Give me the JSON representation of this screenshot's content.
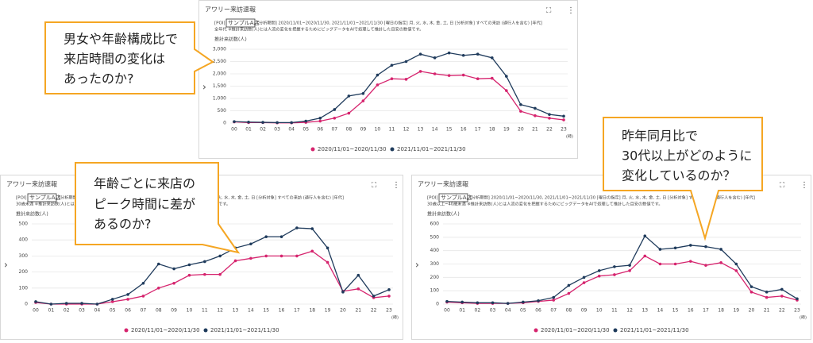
{
  "chart_data": [
    {
      "type": "line",
      "title": "アワリー来訪速報",
      "poi_label": "[POI]",
      "store": "サンプルA店",
      "description": [
        "[分析期間] 2020/11/01~2020/11/30, 2021/11/01~2021/11/30 [曜日の指定] 月, 火, 水, 木, 金, 土, 日 [分析対象] すべての来訪 (通行人を含む) [年代]",
        "全年代 ※推計来訪数(人)とは人流の変化を把握するためにビッグデータをAIで処理して推計した目安の数値です。"
      ],
      "y_label": "推計来訪数(人)",
      "x_unit": "(時)",
      "categories": [
        "00",
        "01",
        "02",
        "03",
        "04",
        "05",
        "06",
        "07",
        "08",
        "09",
        "10",
        "11",
        "12",
        "13",
        "14",
        "15",
        "16",
        "17",
        "18",
        "19",
        "20",
        "21",
        "22",
        "23"
      ],
      "ylim": [
        0,
        3000
      ],
      "yticks": [
        0,
        500,
        {
          "value": 1000,
          "label": "1,000"
        },
        {
          "value": 1500,
          "label": "1,500"
        },
        {
          "value": 2000,
          "label": "2,000"
        },
        {
          "value": 2500,
          "label": "2,500"
        },
        {
          "value": 3000,
          "label": "3,000"
        }
      ],
      "series": [
        {
          "name": "2020/11/01~2020/11/30",
          "color": "#d6246e",
          "values": [
            50,
            20,
            20,
            10,
            10,
            30,
            80,
            200,
            400,
            900,
            1550,
            1800,
            1780,
            2100,
            2000,
            1930,
            1950,
            1800,
            1820,
            1320,
            480,
            300,
            200,
            130
          ]
        },
        {
          "name": "2021/11/01~2021/11/30",
          "color": "#1f3b5c",
          "values": [
            60,
            40,
            30,
            20,
            20,
            80,
            200,
            550,
            1100,
            1200,
            1950,
            2350,
            2500,
            2800,
            2650,
            2850,
            2750,
            2800,
            2650,
            1900,
            750,
            600,
            350,
            280
          ]
        }
      ]
    },
    {
      "type": "line",
      "title": "アワリー来訪速報",
      "poi_label": "[POI]",
      "store": "サンプルA店",
      "description": [
        "[分析期間] 2020/11/01~2020/11/30, 2021/11/01~2021/11/30 [曜日の指定] 月, 火, 水, 木, 金, 土, 日 [分析対象] すべての来訪 (通行人を含む) [年代]",
        "30歳未満 ※推計来訪数(人)とは人流の変化を把握するためにビッグデータをAIで処理して推計した目安の数値です。"
      ],
      "y_label": "推計来訪数(人)",
      "x_unit": "(時)",
      "categories": [
        "00",
        "01",
        "02",
        "03",
        "04",
        "05",
        "06",
        "07",
        "08",
        "09",
        "10",
        "11",
        "12",
        "13",
        "14",
        "15",
        "16",
        "17",
        "18",
        "19",
        "20",
        "21",
        "22",
        "23"
      ],
      "ylim": [
        0,
        500
      ],
      "yticks": [
        0,
        100,
        200,
        300,
        400,
        500
      ],
      "series": [
        {
          "name": "2020/11/01~2020/11/30",
          "color": "#d6246e",
          "values": [
            10,
            0,
            0,
            0,
            0,
            15,
            30,
            50,
            100,
            130,
            180,
            185,
            185,
            270,
            285,
            300,
            300,
            300,
            330,
            260,
            80,
            95,
            40,
            50
          ]
        },
        {
          "name": "2021/11/01~2021/11/30",
          "color": "#1f3b5c",
          "values": [
            15,
            0,
            5,
            5,
            0,
            30,
            60,
            130,
            250,
            220,
            245,
            265,
            300,
            350,
            375,
            420,
            420,
            475,
            470,
            350,
            75,
            180,
            50,
            90
          ]
        }
      ]
    },
    {
      "type": "line",
      "title": "アワリー来訪速報",
      "poi_label": "[POI]",
      "store": "サンプルA店",
      "description": [
        "[分析期間] 2020/11/01~2020/11/30, 2021/11/01~2021/11/30 [曜日の指定] 月, 火, 水, 木, 金, 土, 日 [分析対象] すべての来訪 (通行人を含む) [年代]",
        "30歳以上~40歳未満 ※推計来訪数(人)とは人流の変化を把握するためにビッグデータをAIで処理して推計した目安の数値です。"
      ],
      "y_label": "推計来訪数(人)",
      "x_unit": "(時)",
      "categories": [
        "00",
        "01",
        "02",
        "03",
        "04",
        "05",
        "06",
        "07",
        "08",
        "09",
        "10",
        "11",
        "12",
        "13",
        "14",
        "15",
        "16",
        "17",
        "18",
        "19",
        "20",
        "21",
        "22",
        "23"
      ],
      "ylim": [
        0,
        600
      ],
      "yticks": [
        0,
        100,
        200,
        300,
        400,
        500,
        600
      ],
      "series": [
        {
          "name": "2020/11/01~2020/11/30",
          "color": "#d6246e",
          "values": [
            15,
            10,
            5,
            5,
            5,
            10,
            20,
            30,
            80,
            160,
            210,
            220,
            250,
            360,
            300,
            300,
            320,
            290,
            310,
            250,
            90,
            50,
            60,
            30
          ]
        },
        {
          "name": "2021/11/01~2021/11/30",
          "color": "#1f3b5c",
          "values": [
            20,
            15,
            10,
            10,
            5,
            15,
            25,
            50,
            140,
            200,
            250,
            280,
            290,
            510,
            410,
            420,
            440,
            430,
            410,
            300,
            130,
            90,
            110,
            40
          ]
        }
      ]
    }
  ],
  "callouts": [
    {
      "lines": [
        "男女や年齢構成比で",
        "来店時間の変化は",
        "あったのか?"
      ]
    },
    {
      "lines": [
        "年齢ごとに来店の",
        "ピーク時間に差が",
        "あるのか?"
      ]
    },
    {
      "lines": [
        "昨年同月比で",
        "30代以上がどのように",
        "変化しているのか？"
      ]
    }
  ]
}
